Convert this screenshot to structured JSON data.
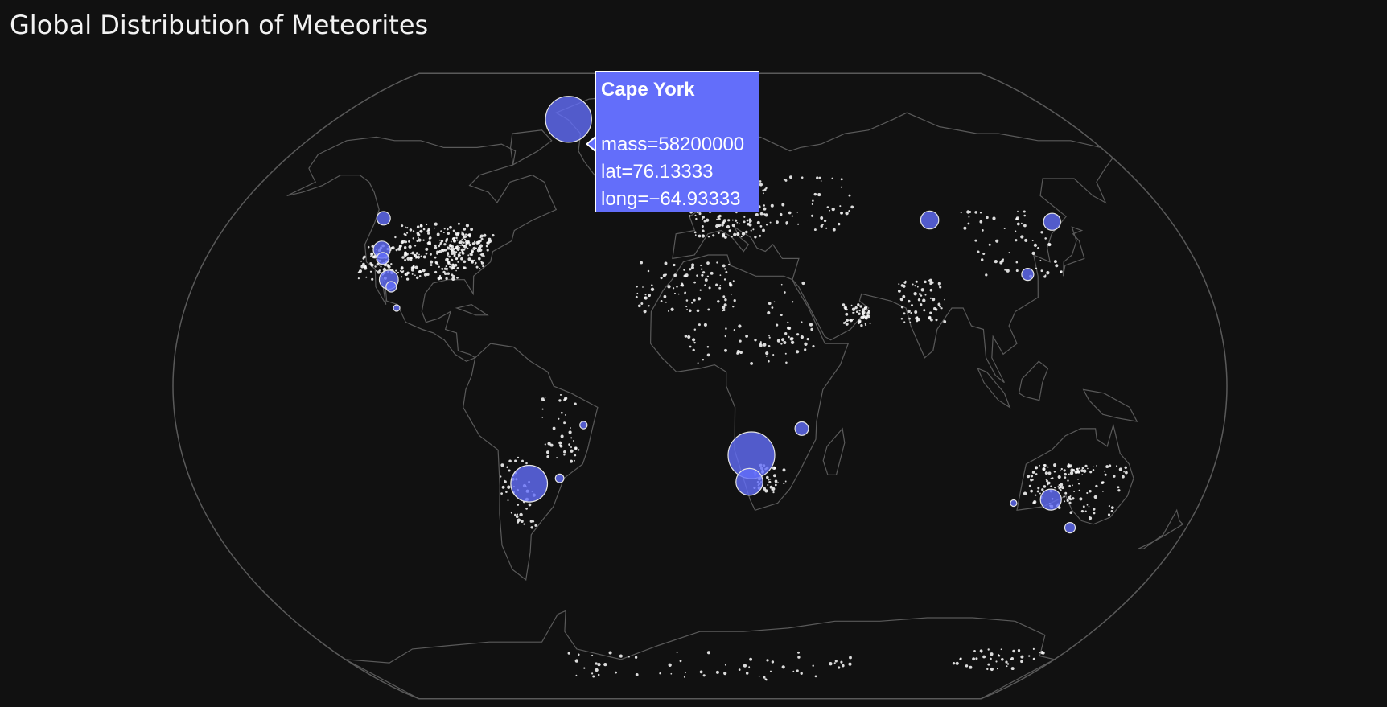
{
  "title": "Global Distribution of Meteorites",
  "colors": {
    "background": "#111111",
    "land_outline": "#5a5a5a",
    "frame": "#5a5a5a",
    "marker_fill": "#636efa",
    "marker_line": "#e5e5e5",
    "small_marker": "#ffffff"
  },
  "chart_data": {
    "type": "scatter",
    "projection": "natural earth",
    "size_field": "mass",
    "large_points": [
      {
        "name": "Cape York",
        "lat": 76.13,
        "lon": -64.93,
        "mass": 58200000
      },
      {
        "name": "",
        "lat": 47.5,
        "lon": -121.5,
        "mass": 5000000
      },
      {
        "name": "",
        "lat": 38.5,
        "lon": -117.0,
        "mass": 8000000
      },
      {
        "name": "",
        "lat": 36.0,
        "lon": -115.5,
        "mass": 4000000
      },
      {
        "name": "",
        "lat": 30.0,
        "lon": -111.0,
        "mass": 10000000
      },
      {
        "name": "",
        "lat": 28.0,
        "lon": -109.5,
        "mass": 3000000
      },
      {
        "name": "",
        "lat": 22.0,
        "lon": -106.0,
        "mass": 500000
      },
      {
        "name": "",
        "lat": 47.0,
        "lon": 88.0,
        "mass": 9000000
      },
      {
        "name": "",
        "lat": 46.5,
        "lon": 134.5,
        "mass": 8000000
      },
      {
        "name": "",
        "lat": 31.5,
        "lon": 117.5,
        "mass": 4000000
      },
      {
        "name": "",
        "lat": -19.5,
        "lon": 17.9,
        "mass": 60000000
      },
      {
        "name": "",
        "lat": -27.0,
        "lon": 17.5,
        "mass": 20000000
      },
      {
        "name": "",
        "lat": -12.0,
        "lon": 35.0,
        "mass": 5000000
      },
      {
        "name": "",
        "lat": -27.5,
        "lon": -60.5,
        "mass": 37000000
      },
      {
        "name": "",
        "lat": -26.0,
        "lon": -49.5,
        "mass": 2000000
      },
      {
        "name": "",
        "lat": -11.0,
        "lon": -40.0,
        "mass": 1500000
      },
      {
        "name": "",
        "lat": -32.0,
        "lon": 126.0,
        "mass": 12000000
      },
      {
        "name": "",
        "lat": -40.0,
        "lon": 137.0,
        "mass": 3000000
      },
      {
        "name": "",
        "lat": -33.0,
        "lon": 113.0,
        "mass": 1000000
      }
    ]
  },
  "hover": {
    "name": "Cape York",
    "mass_text": "mass=58200000",
    "lat_text": "lat=76.13333",
    "long_text": "long=−64.93333"
  }
}
